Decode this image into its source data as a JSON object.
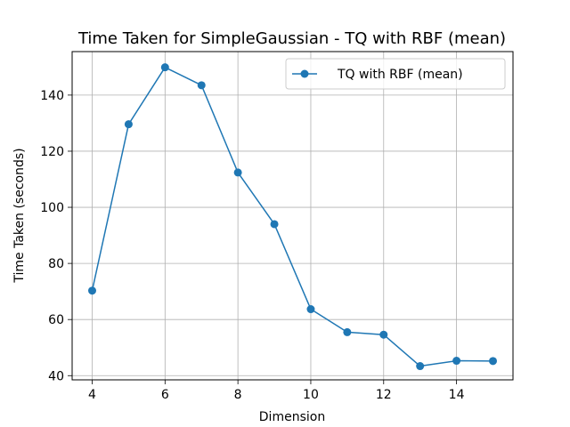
{
  "chart_data": {
    "type": "line",
    "title": "Time Taken for SimpleGaussian - TQ with RBF (mean)",
    "xlabel": "Dimension",
    "ylabel": "Time Taken (seconds)",
    "xlim": [
      3.45,
      15.55
    ],
    "ylim": [
      38.5,
      155.5
    ],
    "xticks": [
      4,
      6,
      8,
      10,
      12,
      14
    ],
    "yticks": [
      40,
      60,
      80,
      100,
      120,
      140
    ],
    "grid": true,
    "legend_position": "top-right",
    "colors": {
      "series": "#1f77b4",
      "grid": "#b0b0b0",
      "axis": "#000000"
    },
    "series": [
      {
        "name": "TQ with RBF (mean)",
        "x": [
          4,
          5,
          6,
          7,
          8,
          9,
          10,
          11,
          12,
          13,
          14,
          15
        ],
        "y": [
          70.3,
          129.6,
          149.9,
          143.5,
          112.4,
          94.0,
          63.7,
          55.5,
          54.6,
          43.4,
          45.3,
          45.2
        ]
      }
    ]
  }
}
